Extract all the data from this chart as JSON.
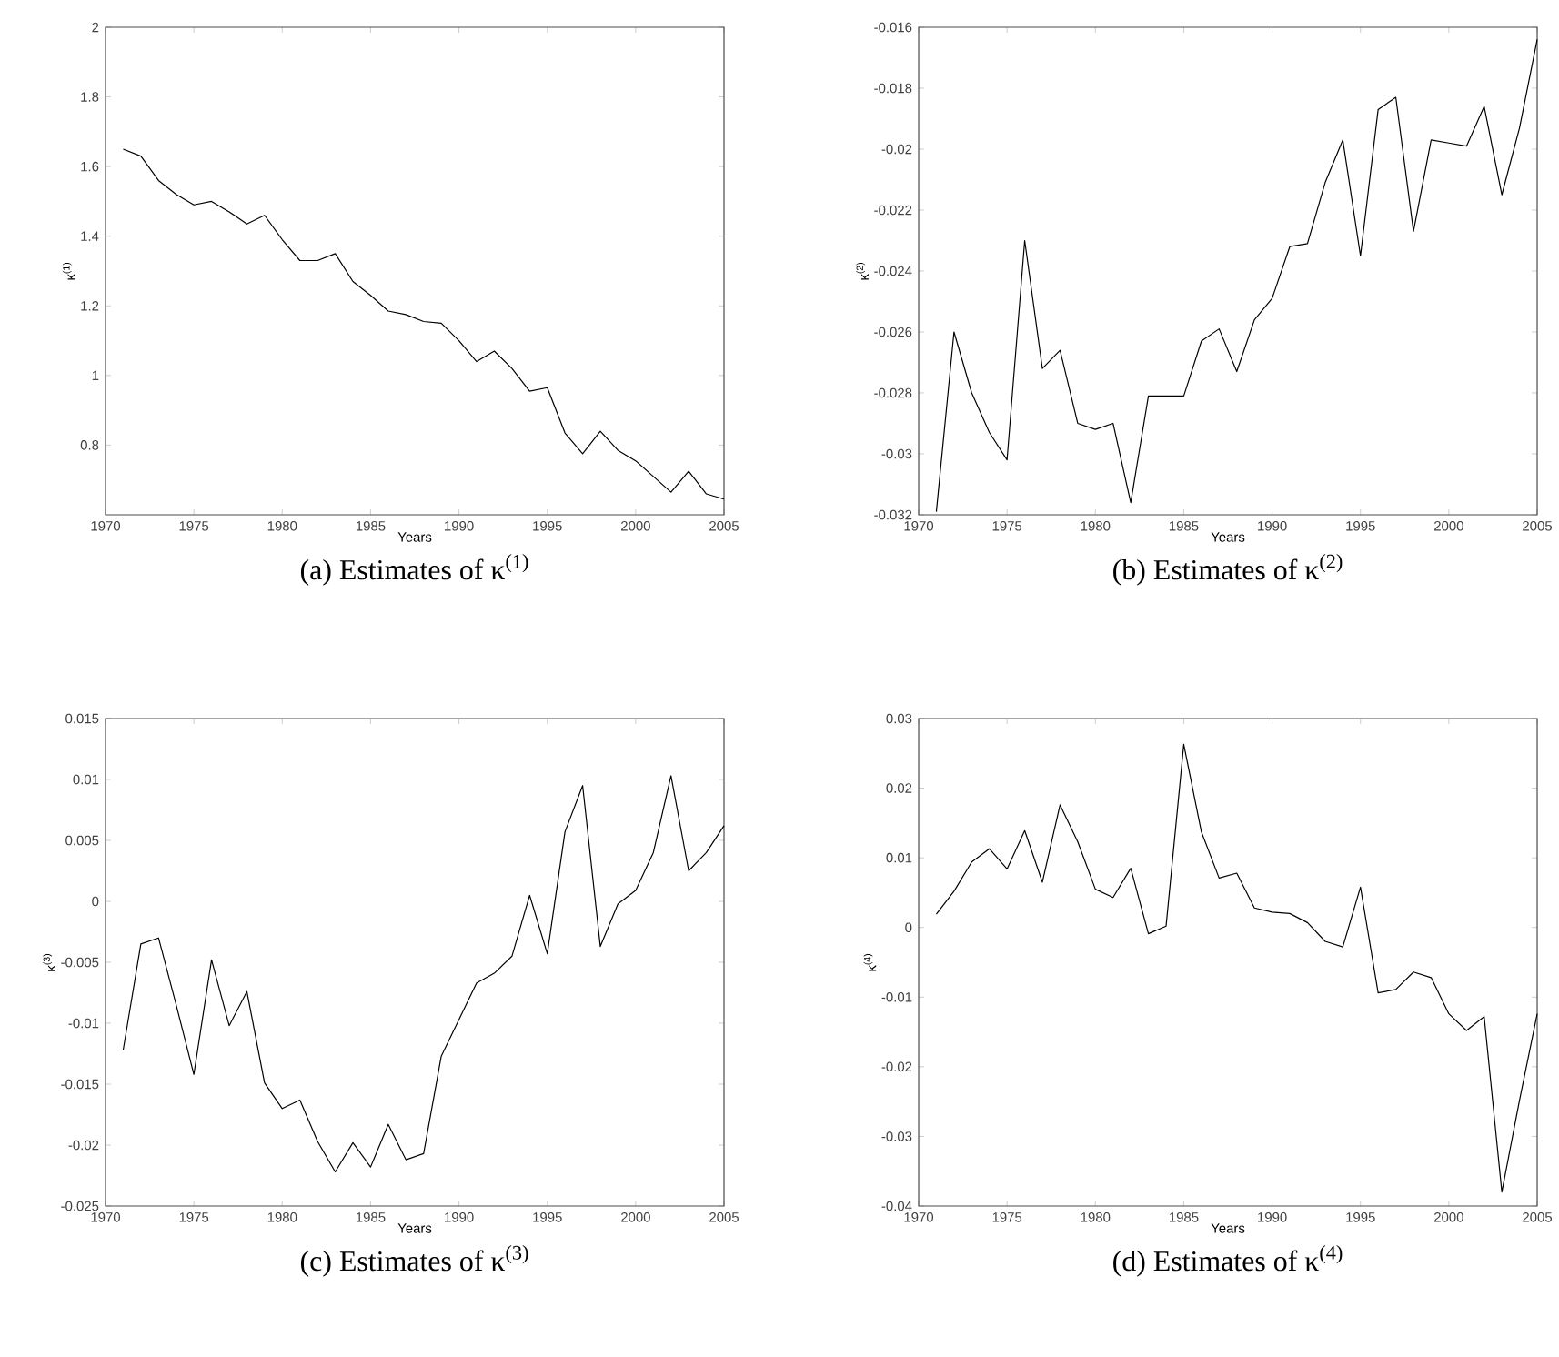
{
  "chart_data": [
    {
      "type": "line",
      "title": "(a) Estimates of κ$^{(1)}$",
      "xlabel": "Years",
      "ylabel": "κ$^{(1)}$",
      "color": "#000000",
      "xlim": [
        1970,
        2005
      ],
      "xticks": [
        1970,
        1975,
        1980,
        1985,
        1990,
        1995,
        2000,
        2005
      ],
      "ylim": [
        0.6,
        2
      ],
      "yticks": [
        0.8,
        1,
        1.2,
        1.4,
        1.6,
        1.8,
        2
      ],
      "x": [
        1971,
        1972,
        1973,
        1974,
        1975,
        1976,
        1977,
        1978,
        1979,
        1980,
        1981,
        1982,
        1983,
        1984,
        1985,
        1986,
        1987,
        1988,
        1989,
        1990,
        1991,
        1992,
        1993,
        1994,
        1995,
        1996,
        1997,
        1998,
        1999,
        2000,
        2001,
        2002,
        2003,
        2004,
        2005
      ],
      "values": [
        1.65,
        1.63,
        1.56,
        1.52,
        1.49,
        1.5,
        1.47,
        1.435,
        1.46,
        1.39,
        1.33,
        1.33,
        1.35,
        1.27,
        1.23,
        1.185,
        1.175,
        1.155,
        1.15,
        1.1,
        1.04,
        1.07,
        1.02,
        0.955,
        0.965,
        0.835,
        0.775,
        0.84,
        0.785,
        0.755,
        0.71,
        0.665,
        0.725,
        0.66,
        0.645
      ]
    },
    {
      "type": "line",
      "title": "(b) Estimates of κ$^{(2)}$",
      "xlabel": "Years",
      "ylabel": "κ$^{(2)}$",
      "color": "#000000",
      "xlim": [
        1970,
        2005
      ],
      "xticks": [
        1970,
        1975,
        1980,
        1985,
        1990,
        1995,
        2000,
        2005
      ],
      "ylim": [
        -0.032,
        -0.016
      ],
      "yticks": [
        -0.032,
        -0.03,
        -0.028,
        -0.026,
        -0.024,
        -0.022,
        -0.02,
        -0.018,
        -0.016
      ],
      "x": [
        1971,
        1972,
        1973,
        1974,
        1975,
        1976,
        1977,
        1978,
        1979,
        1980,
        1981,
        1982,
        1983,
        1984,
        1985,
        1986,
        1987,
        1988,
        1989,
        1990,
        1991,
        1992,
        1993,
        1994,
        1995,
        1996,
        1997,
        1998,
        1999,
        2000,
        2001,
        2002,
        2003,
        2004,
        2005
      ],
      "values": [
        -0.0319,
        -0.026,
        -0.028,
        -0.0293,
        -0.0302,
        -0.023,
        -0.0272,
        -0.0266,
        -0.029,
        -0.0292,
        -0.029,
        -0.0316,
        -0.0281,
        -0.0281,
        -0.0281,
        -0.0263,
        -0.0259,
        -0.0273,
        -0.0256,
        -0.0249,
        -0.0232,
        -0.0231,
        -0.0211,
        -0.0197,
        -0.0235,
        -0.0187,
        -0.0183,
        -0.0227,
        -0.0197,
        -0.0198,
        -0.0199,
        -0.0186,
        -0.0215,
        -0.0193,
        -0.0164
      ]
    },
    {
      "type": "line",
      "title": "(c) Estimates of κ$^{(3)}$",
      "xlabel": "Years",
      "ylabel": "κ$^{(3)}$",
      "color": "#000000",
      "xlim": [
        1970,
        2005
      ],
      "xticks": [
        1970,
        1975,
        1980,
        1985,
        1990,
        1995,
        2000,
        2005
      ],
      "ylim": [
        -0.025,
        0.015
      ],
      "yticks": [
        -0.025,
        -0.02,
        -0.015,
        -0.01,
        -0.005,
        0,
        0.005,
        0.01,
        0.015
      ],
      "x": [
        1971,
        1972,
        1973,
        1974,
        1975,
        1976,
        1977,
        1978,
        1979,
        1980,
        1981,
        1982,
        1983,
        1984,
        1985,
        1986,
        1987,
        1988,
        1989,
        1990,
        1991,
        1992,
        1993,
        1994,
        1995,
        1996,
        1997,
        1998,
        1999,
        2000,
        2001,
        2002,
        2003,
        2004,
        2005
      ],
      "values": [
        -0.0122,
        -0.0035,
        -0.003,
        -0.0085,
        -0.0142,
        -0.0048,
        -0.0102,
        -0.0074,
        -0.0149,
        -0.017,
        -0.0163,
        -0.0197,
        -0.0222,
        -0.0198,
        -0.0218,
        -0.0183,
        -0.0212,
        -0.0207,
        -0.0127,
        -0.0097,
        -0.0067,
        -0.0059,
        -0.0045,
        0.0005,
        -0.0043,
        0.0057,
        0.0095,
        -0.0037,
        -0.0002,
        0.0009,
        0.004,
        0.0103,
        0.0025,
        0.004,
        0.0062
      ]
    },
    {
      "type": "line",
      "title": "(d) Estimates of κ$^{(4)}$",
      "xlabel": "Years",
      "ylabel": "κ$^{(4)}$",
      "color": "#000000",
      "xlim": [
        1970,
        2005
      ],
      "xticks": [
        1970,
        1975,
        1980,
        1985,
        1990,
        1995,
        2000,
        2005
      ],
      "ylim": [
        -0.04,
        0.03
      ],
      "yticks": [
        -0.04,
        -0.03,
        -0.02,
        -0.01,
        0,
        0.01,
        0.02,
        0.03
      ],
      "x": [
        1971,
        1972,
        1973,
        1974,
        1975,
        1976,
        1977,
        1978,
        1979,
        1980,
        1981,
        1982,
        1983,
        1984,
        1985,
        1986,
        1987,
        1988,
        1989,
        1990,
        1991,
        1992,
        1993,
        1994,
        1995,
        1996,
        1997,
        1998,
        1999,
        2000,
        2001,
        2002,
        2003,
        2004,
        2005
      ],
      "values": [
        0.0019,
        0.0052,
        0.0094,
        0.0113,
        0.0084,
        0.0139,
        0.0065,
        0.0176,
        0.0123,
        0.0055,
        0.0043,
        0.0085,
        -0.0009,
        0.0002,
        0.0263,
        0.0137,
        0.0071,
        0.0078,
        0.0028,
        0.0022,
        0.002,
        0.0007,
        -0.002,
        -0.0028,
        0.0058,
        -0.0094,
        -0.0089,
        -0.0064,
        -0.0072,
        -0.0124,
        -0.0148,
        -0.0128,
        -0.038,
        -0.0248,
        -0.0124
      ]
    }
  ]
}
